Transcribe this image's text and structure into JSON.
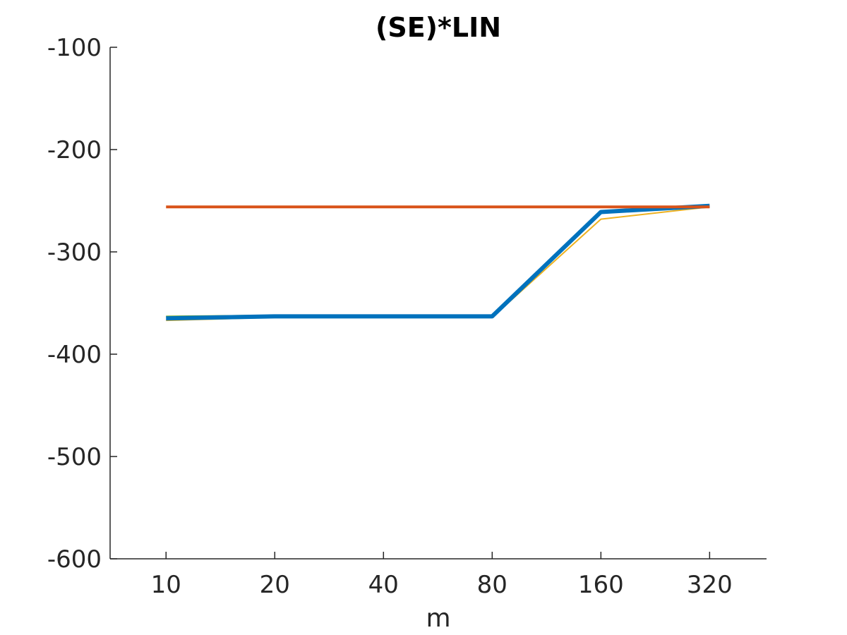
{
  "chart_data": {
    "type": "line",
    "title": "(SE)*LIN",
    "xlabel": "m",
    "ylabel": "",
    "x_scale": "log2",
    "x": [
      10,
      20,
      40,
      80,
      160,
      320
    ],
    "x_tick_labels": [
      "10",
      "20",
      "40",
      "80",
      "160",
      "320"
    ],
    "xlim": [
      7,
      460
    ],
    "ylim": [
      -600,
      -100
    ],
    "y_ticks": [
      -100,
      -200,
      -300,
      -400,
      -500,
      -600
    ],
    "y_tick_labels": [
      "-100",
      "-200",
      "-300",
      "-400",
      "-500",
      "-600"
    ],
    "grid": false,
    "legend": "none",
    "series": [
      {
        "color": "#EDB120",
        "values": [
          -367,
          -364,
          -364,
          -364,
          -268,
          -256
        ]
      },
      {
        "color": "#77AC30",
        "values": [
          -363,
          -362,
          -362,
          -362,
          -261,
          -255
        ]
      },
      {
        "color": "#0072BD",
        "values": [
          -365,
          -363,
          -363,
          -363,
          -261,
          -255
        ]
      },
      {
        "color": "#D95319",
        "values": [
          -256,
          -256,
          -256,
          -256,
          -256,
          -256
        ]
      }
    ]
  }
}
